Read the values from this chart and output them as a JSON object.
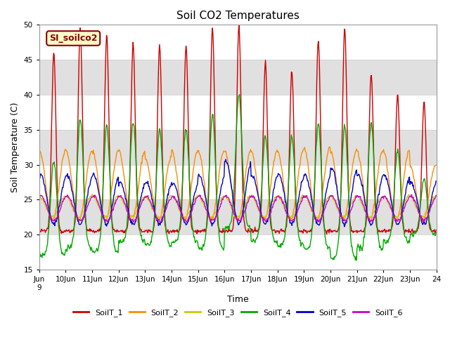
{
  "title": "Soil CO2 Temperatures",
  "xlabel": "Time",
  "ylabel": "Soil Temperature (C)",
  "ylim": [
    15,
    50
  ],
  "annotation_text": "SI_soilco2",
  "annotation_bg": "#FFFFCC",
  "annotation_border": "#8B0000",
  "series_colors": [
    "#CC0000",
    "#FF8C00",
    "#CCCC00",
    "#00AA00",
    "#0000CC",
    "#CC00CC"
  ],
  "series_labels": [
    "SoilT_1",
    "SoilT_2",
    "SoilT_3",
    "SoilT_4",
    "SoilT_5",
    "SoilT_6"
  ],
  "background_color": "#FFFFFF",
  "band_color": "#E0E0E0",
  "band_ranges": [
    [
      40,
      45
    ],
    [
      30,
      35
    ],
    [
      20,
      25
    ]
  ],
  "n_days": 15,
  "n_points_per_day": 48
}
